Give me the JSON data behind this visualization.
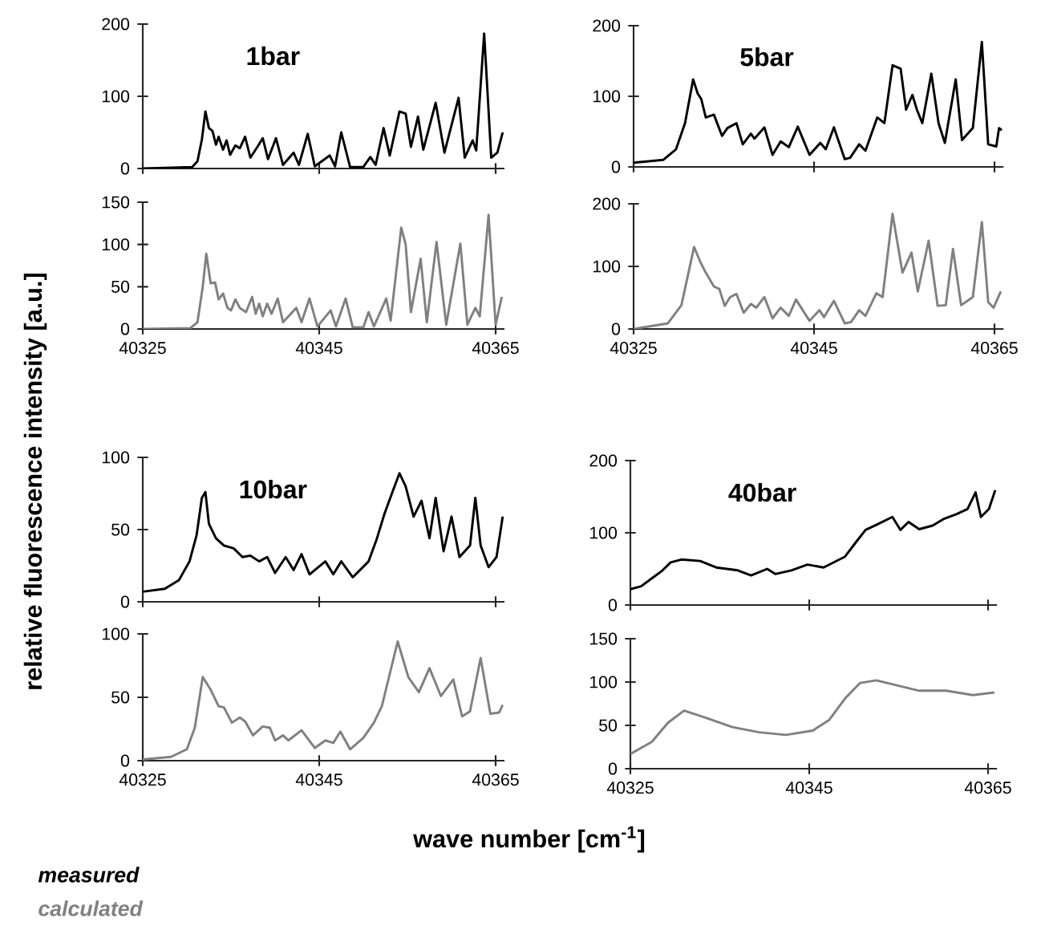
{
  "chart_data": [
    {
      "type": "line",
      "title": "1bar",
      "ylabel": "relative fluorescence intensity [a.u.]",
      "legend": "bottom",
      "tick_labels": "y",
      "xlim": [
        40325,
        40366
      ],
      "xticks": [
        40325,
        40345,
        40365
      ],
      "ylim": [
        0,
        200
      ],
      "yticks": [
        0,
        100,
        200
      ],
      "x": [
        40325.0,
        40330.6,
        40331.2,
        40331.7,
        40332.1,
        40332.5,
        40332.9,
        40333.3,
        40333.6,
        40334.1,
        40334.5,
        40334.9,
        40335.5,
        40336.0,
        40336.6,
        40337.2,
        40338.0,
        40338.6,
        40339.2,
        40340.1,
        40340.9,
        40342.1,
        40342.7,
        40343.7,
        40344.5,
        40346.2,
        40346.8,
        40347.5,
        40348.5,
        40350.0,
        40350.8,
        40351.4,
        40352.3,
        40353.0,
        40354.1,
        40354.8,
        40355.4,
        40356.2,
        40356.8,
        40358.2,
        40359.2,
        40360.8,
        40361.5,
        40362.4,
        40362.8,
        40363.7,
        40364.5,
        40365.2,
        40365.8
      ],
      "series": [
        {
          "name": "measured",
          "color": "#000000",
          "values": [
            0,
            2,
            10,
            40,
            79,
            56,
            52,
            33,
            44,
            26,
            39,
            19,
            32,
            28,
            44,
            15,
            30,
            42,
            13,
            42,
            5,
            22,
            5,
            48,
            3,
            18,
            3,
            50,
            2,
            2,
            16,
            5,
            56,
            18,
            79,
            76,
            30,
            72,
            26,
            91,
            22,
            98,
            15,
            39,
            25,
            187,
            15,
            22,
            50
          ]
        }
      ]
    },
    {
      "type": "line",
      "legend": "bottom",
      "xlim": [
        40325,
        40366
      ],
      "xticks": [
        40325,
        40345,
        40365
      ],
      "ylim": [
        0,
        150
      ],
      "yticks": [
        0,
        50,
        100,
        150
      ],
      "x": [
        40325.0,
        40330.4,
        40331.2,
        40331.8,
        40332.2,
        40332.7,
        40333.2,
        40333.6,
        40334.1,
        40334.6,
        40335.0,
        40335.5,
        40336.0,
        40336.7,
        40337.4,
        40337.8,
        40338.2,
        40338.6,
        40339.1,
        40339.6,
        40340.3,
        40340.9,
        40342.4,
        40343.0,
        40343.9,
        40344.8,
        40346.3,
        40346.9,
        40348.0,
        40348.8,
        40350.0,
        40350.6,
        40351.2,
        40352.6,
        40353.1,
        40354.3,
        40354.8,
        40355.4,
        40356.5,
        40357.2,
        40358.3,
        40359.4,
        40361.0,
        40361.8,
        40362.7,
        40363.2,
        40364.2,
        40365.0,
        40365.7
      ],
      "series": [
        {
          "name": "calculated",
          "color": "#808080",
          "values": [
            0,
            1,
            8,
            50,
            89,
            54,
            55,
            35,
            42,
            25,
            22,
            35,
            25,
            20,
            38,
            18,
            30,
            15,
            30,
            18,
            36,
            8,
            25,
            8,
            36,
            3,
            22,
            3,
            36,
            2,
            2,
            20,
            3,
            36,
            10,
            120,
            100,
            20,
            83,
            8,
            103,
            5,
            101,
            5,
            25,
            15,
            135,
            5,
            38
          ]
        }
      ]
    },
    {
      "type": "line",
      "title": "5bar",
      "tick_labels": "y",
      "xlim": [
        40325,
        40366
      ],
      "xticks": [
        40325,
        40345,
        40365
      ],
      "ylim": [
        0,
        200
      ],
      "yticks": [
        0,
        100,
        200
      ],
      "x": [
        40325.0,
        40328.3,
        40329.7,
        40330.7,
        40331.6,
        40332.1,
        40332.5,
        40333.0,
        40333.9,
        40334.8,
        40335.4,
        40336.4,
        40337.1,
        40338.0,
        40338.4,
        40339.5,
        40340.4,
        40341.3,
        40342.2,
        40343.2,
        40344.5,
        40345.7,
        40346.3,
        40347.2,
        40348.4,
        40349.0,
        40350.0,
        40350.7,
        40352.0,
        40352.8,
        40353.7,
        40354.6,
        40355.2,
        40355.9,
        40356.4,
        40357.0,
        40358.0,
        40358.8,
        40359.5,
        40360.7,
        40361.4,
        40362.6,
        40363.6,
        40364.3,
        40365.2,
        40365.5,
        40365.8
      ],
      "series": [
        {
          "color": "#000000",
          "values": [
            6,
            10,
            25,
            62,
            124,
            104,
            96,
            70,
            74,
            44,
            55,
            62,
            32,
            47,
            40,
            56,
            17,
            36,
            28,
            57,
            17,
            34,
            25,
            56,
            11,
            13,
            32,
            23,
            70,
            62,
            144,
            139,
            81,
            102,
            81,
            62,
            132,
            62,
            34,
            124,
            38,
            55,
            177,
            32,
            29,
            55,
            52
          ]
        }
      ]
    },
    {
      "type": "line",
      "xlim": [
        40325,
        40366
      ],
      "xticks": [
        40325,
        40345,
        40365
      ],
      "ylim": [
        0,
        200
      ],
      "yticks": [
        0,
        100,
        200
      ],
      "x": [
        40325.0,
        40328.8,
        40330.3,
        40331.7,
        40332.4,
        40333.0,
        40333.9,
        40334.5,
        40335.1,
        40335.7,
        40336.4,
        40337.2,
        40338.0,
        40338.6,
        40339.5,
        40340.4,
        40341.3,
        40342.2,
        40343.0,
        40344.5,
        40345.6,
        40346.1,
        40347.2,
        40348.4,
        40349.1,
        40350.0,
        40350.7,
        40351.9,
        40352.6,
        40353.7,
        40354.8,
        40355.8,
        40356.5,
        40357.7,
        40358.7,
        40359.6,
        40360.4,
        40361.3,
        40362.6,
        40363.6,
        40364.3,
        40364.9,
        40365.7
      ],
      "series": [
        {
          "color": "#808080",
          "values": [
            0,
            9,
            38,
            131,
            107,
            90,
            68,
            64,
            37,
            51,
            56,
            26,
            40,
            34,
            51,
            17,
            34,
            21,
            47,
            13,
            30,
            19,
            45,
            9,
            11,
            30,
            21,
            57,
            51,
            184,
            90,
            122,
            60,
            141,
            37,
            38,
            128,
            38,
            51,
            171,
            43,
            34,
            60
          ]
        }
      ]
    },
    {
      "type": "line",
      "title": "10bar",
      "tick_labels": "y",
      "xlim": [
        40325,
        40366
      ],
      "xticks": [
        40325,
        40345,
        40365
      ],
      "ylim": [
        0,
        100
      ],
      "yticks": [
        0,
        50,
        100
      ],
      "x": [
        40325.0,
        40327.5,
        40329.1,
        40330.3,
        40331.1,
        40331.7,
        40332.1,
        40332.5,
        40333.3,
        40334.2,
        40335.3,
        40336.3,
        40337.2,
        40338.2,
        40339.1,
        40340.0,
        40341.2,
        40342.1,
        40343.0,
        40343.9,
        40345.7,
        40346.6,
        40347.5,
        40348.8,
        40350.6,
        40351.5,
        40352.4,
        40353.3,
        40354.1,
        40354.8,
        40355.7,
        40356.6,
        40357.5,
        40358.2,
        40359.1,
        40360.0,
        40360.9,
        40362.1,
        40362.7,
        40363.3,
        40364.2,
        40365.1,
        40365.8
      ],
      "series": [
        {
          "color": "#000000",
          "values": [
            7,
            9,
            15,
            28,
            46,
            72,
            76,
            54,
            44,
            39,
            37,
            31,
            32,
            28,
            31,
            20,
            31,
            22,
            33,
            19,
            28,
            19,
            28,
            17,
            28,
            43,
            61,
            76,
            89,
            80,
            59,
            70,
            44,
            72,
            35,
            59,
            31,
            39,
            72,
            39,
            24,
            31,
            59
          ]
        }
      ]
    },
    {
      "type": "line",
      "xlabel": "wave number [cm$^{-1}$]",
      "xlim": [
        40325,
        40366
      ],
      "xticks": [
        40325,
        40345,
        40365
      ],
      "ylim": [
        0,
        100
      ],
      "yticks": [
        0,
        50,
        100
      ],
      "x": [
        40325.0,
        40328.2,
        40330.0,
        40330.9,
        40331.8,
        40332.7,
        40333.6,
        40334.2,
        40335.1,
        40336.0,
        40336.6,
        40337.5,
        40338.6,
        40339.4,
        40340.0,
        40340.9,
        40341.5,
        40343.0,
        40344.5,
        40345.7,
        40346.6,
        40347.4,
        40348.5,
        40350.0,
        40351.2,
        40352.1,
        40353.9,
        40355.1,
        40356.3,
        40357.5,
        40358.8,
        40360.2,
        40361.2,
        40362.1,
        40363.3,
        40364.4,
        40365.4,
        40365.8
      ],
      "series": [
        {
          "color": "#808080",
          "values": [
            1,
            3,
            9,
            26,
            66,
            56,
            43,
            42,
            30,
            34,
            31,
            20,
            27,
            26,
            16,
            20,
            16,
            24,
            10,
            16,
            14,
            23,
            9,
            18,
            30,
            43,
            94,
            66,
            54,
            73,
            51,
            64,
            35,
            39,
            81,
            37,
            38,
            44
          ]
        }
      ]
    },
    {
      "type": "line",
      "title": "40bar",
      "tick_labels": "y",
      "xlim": [
        40325,
        40366
      ],
      "xticks": [
        40325,
        40345,
        40365
      ],
      "ylim": [
        0,
        200
      ],
      "yticks": [
        0,
        100,
        200
      ],
      "x": [
        40325.0,
        40326.2,
        40327.4,
        40328.6,
        40329.5,
        40330.7,
        40332.8,
        40334.6,
        40337.0,
        40338.5,
        40340.3,
        40341.2,
        40343.0,
        40344.8,
        40346.6,
        40349.0,
        40350.1,
        40351.3,
        40352.5,
        40354.3,
        40355.2,
        40356.1,
        40357.3,
        40358.8,
        40360.0,
        40361.5,
        40362.7,
        40363.6,
        40364.2,
        40365.1,
        40365.8
      ],
      "series": [
        {
          "color": "#000000",
          "values": [
            22,
            26,
            37,
            48,
            59,
            63,
            61,
            52,
            48,
            41,
            50,
            43,
            48,
            56,
            52,
            67,
            85,
            104,
            111,
            122,
            104,
            115,
            105,
            110,
            119,
            126,
            133,
            156,
            122,
            133,
            159
          ]
        }
      ]
    },
    {
      "type": "line",
      "xlim": [
        40325,
        40366
      ],
      "xticks": [
        40325,
        40345,
        40365
      ],
      "ylim": [
        0,
        150
      ],
      "yticks": [
        0,
        50,
        100,
        150
      ],
      "x": [
        40325.0,
        40327.4,
        40329.2,
        40331.0,
        40333.4,
        40336.4,
        40339.4,
        40342.4,
        40345.4,
        40347.2,
        40349.0,
        40350.7,
        40352.5,
        40354.9,
        40357.3,
        40360.3,
        40363.3,
        40365.7
      ],
      "series": [
        {
          "color": "#808080",
          "values": [
            17,
            31,
            53,
            67,
            59,
            48,
            42,
            39,
            44,
            56,
            81,
            99,
            102,
            96,
            90,
            90,
            85,
            88
          ]
        }
      ]
    }
  ]
}
